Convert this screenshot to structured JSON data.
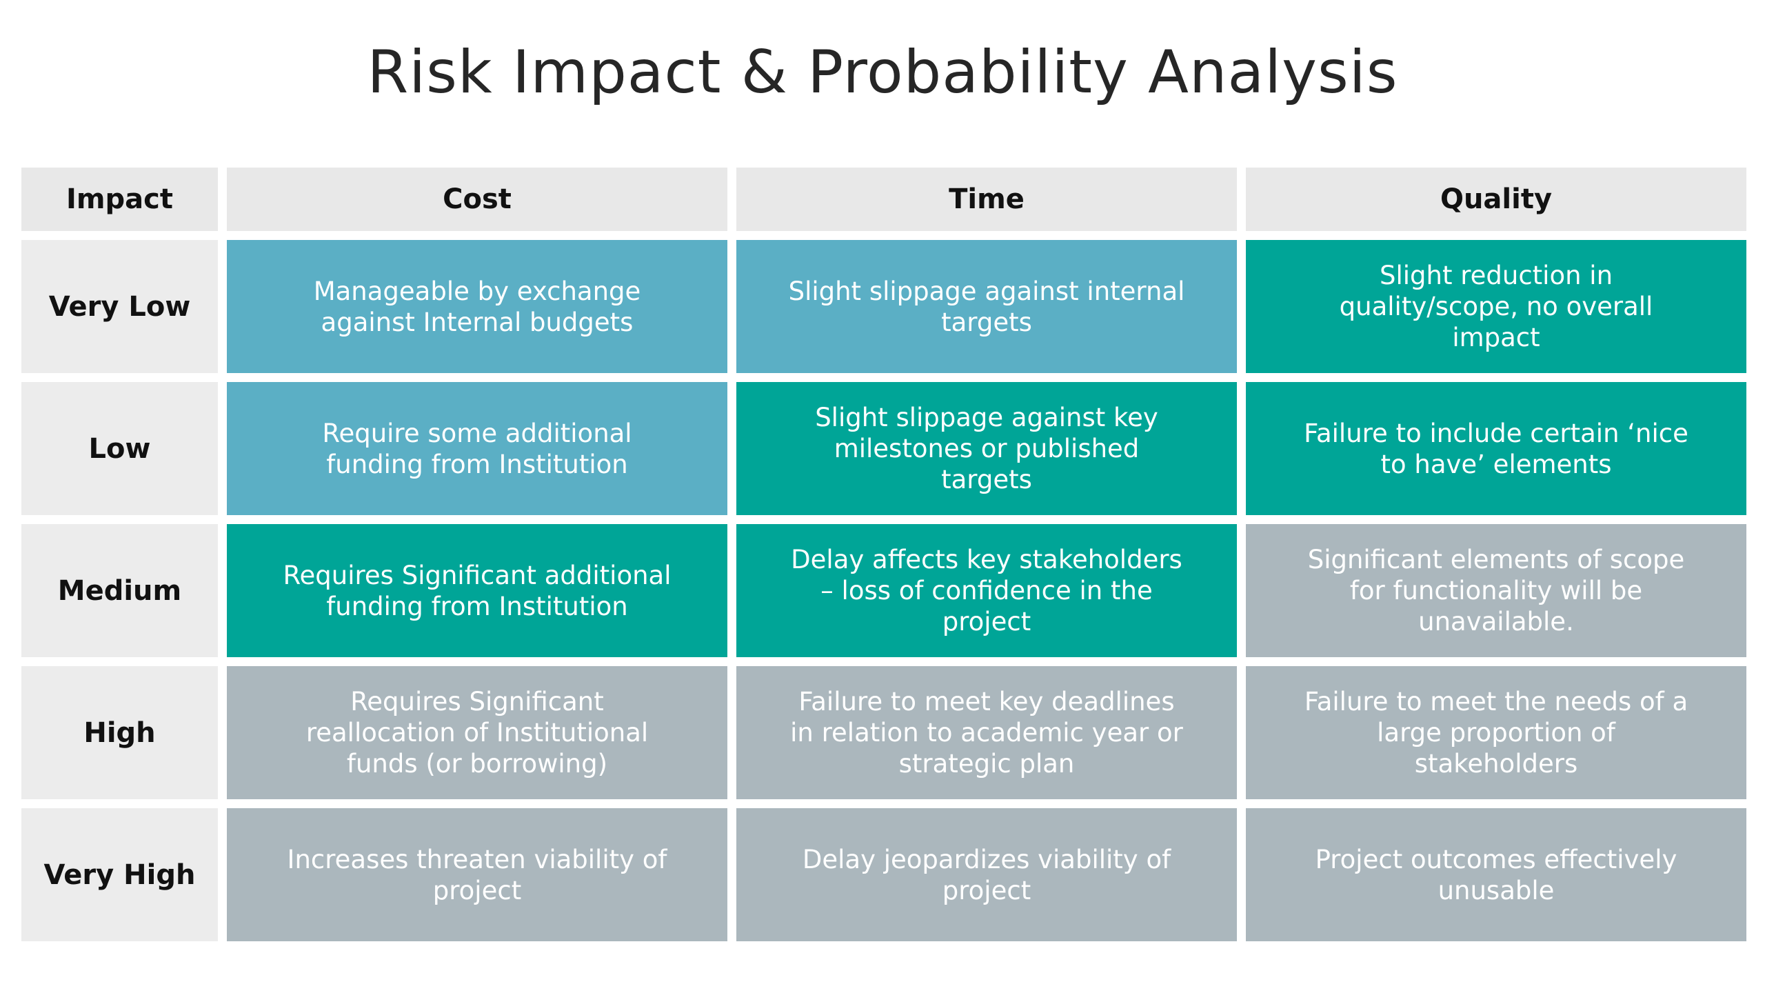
{
  "title": "Risk Impact & Probability Analysis",
  "columns": [
    "Impact",
    "Cost",
    "Time",
    "Quality"
  ],
  "colors": {
    "blue": "#5bafc5",
    "teal": "#00a597",
    "grey": "#abb7bd",
    "header": "#e8e8e8"
  },
  "rows": [
    {
      "label": "Very Low",
      "cells": [
        {
          "text": "Manageable by exchange against Internal budgets",
          "level": "blue"
        },
        {
          "text": "Slight slippage against internal targets",
          "level": "blue"
        },
        {
          "text": "Slight reduction in quality/scope, no overall impact",
          "level": "teal"
        }
      ]
    },
    {
      "label": "Low",
      "cells": [
        {
          "text": "Require some additional funding from Institution",
          "level": "blue"
        },
        {
          "text": "Slight slippage against key milestones or published targets",
          "level": "teal"
        },
        {
          "text": "Failure to include certain ‘nice to have’ elements",
          "level": "teal"
        }
      ]
    },
    {
      "label": "Medium",
      "cells": [
        {
          "text": "Requires Significant additional funding from Institution",
          "level": "teal"
        },
        {
          "text": "Delay affects key stakeholders – loss of confidence in the project",
          "level": "teal"
        },
        {
          "text": "Significant elements of scope for functionality will be unavailable.",
          "level": "grey"
        }
      ]
    },
    {
      "label": "High",
      "cells": [
        {
          "text": "Requires Significant reallocation of Institutional funds (or borrowing)",
          "level": "grey"
        },
        {
          "text": "Failure to meet key deadlines in relation to academic year or strategic plan",
          "level": "grey"
        },
        {
          "text": "Failure to meet the needs of a large proportion of stakeholders",
          "level": "grey"
        }
      ]
    },
    {
      "label": "Very High",
      "cells": [
        {
          "text": "Increases threaten viability of project",
          "level": "grey"
        },
        {
          "text": "Delay  jeopardizes viability of project",
          "level": "grey"
        },
        {
          "text": "Project outcomes effectively unusable",
          "level": "grey"
        }
      ]
    }
  ]
}
